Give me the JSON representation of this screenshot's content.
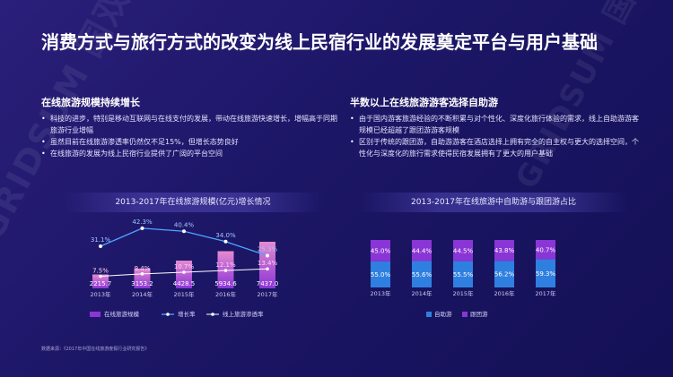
{
  "page": {
    "title": "消费方式与旅行方式的改变为线上民宿行业的发展奠定平台与用户基础",
    "watermark": "GRIDSUM 国双"
  },
  "left": {
    "heading": "在线旅游规模持续增长",
    "bullets": [
      "科技的进步，特别是移动互联网与在线支付的发展，带动在线旅游快速增长，增幅高于同期旅游行业增幅",
      "虽然目前在线旅游渗透率仍然仅不足15%，但增长态势良好",
      "在线旅游的发展为线上民宿行业提供了广阔的平台空间"
    ]
  },
  "right": {
    "heading": "半数以上在线旅游游客选择自助游",
    "bullets": [
      "由于国内游客旅游经验的不断积累与对个性化、深度化旅行体验的需求，线上自助游游客规模已经超越了跟团游游客规模",
      "区别于传统的跟团游，自助游游客在酒店选择上拥有完全的自主权与更大的选择空间，个性化与深度化的旅行需求使得民宿发展拥有了更大的用户基础"
    ]
  },
  "source": "数据来源：《2017年中国在线旅游度假行业研究报告》",
  "colors": {
    "bar_pink": "#e58ad0",
    "bar_purple": "#8a35d6",
    "line_growth": "#4da6ff",
    "line_penetration": "#ffffff",
    "bar_blue": "#2f7fe0"
  },
  "chart_data": [
    {
      "type": "bar",
      "title": "2013-2017年在线旅游规模(亿元)增长情况",
      "categories": [
        "2013年",
        "2014年",
        "2015年",
        "2016年",
        "2017年"
      ],
      "series": [
        {
          "name": "在线旅游规模",
          "kind": "bar",
          "values": [
            2215.7,
            3153.2,
            4428.5,
            5934.6,
            7437.0
          ],
          "labels": [
            "2215.7",
            "3153.2",
            "4428.5",
            "5934.6",
            "7437.0"
          ]
        },
        {
          "name": "增长率",
          "kind": "line",
          "values": [
            31.1,
            42.3,
            40.4,
            34.0,
            25.3
          ],
          "labels": [
            "31.1%",
            "42.3%",
            "40.4%",
            "34.0%",
            "25.3%"
          ]
        },
        {
          "name": "线上旅游渗透率",
          "kind": "line",
          "values": [
            7.5,
            9.4,
            10.7,
            12.1,
            13.4
          ],
          "labels": [
            "7.5%",
            "9.4%",
            "10.7%",
            "12.1%",
            "13.4%"
          ]
        }
      ],
      "legend_position": "bottom"
    },
    {
      "type": "bar",
      "stacked": true,
      "percent": true,
      "title": "2013-2017年在线旅游中自助游与跟团游占比",
      "categories": [
        "2013年",
        "2014年",
        "2015年",
        "2016年",
        "2017年"
      ],
      "series": [
        {
          "name": "自助游",
          "values": [
            55.0,
            55.6,
            55.5,
            56.2,
            59.3
          ],
          "labels": [
            "55.0%",
            "55.6%",
            "55.5%",
            "56.2%",
            "59.3%"
          ]
        },
        {
          "name": "跟团游",
          "values": [
            45.0,
            44.4,
            44.5,
            43.8,
            40.7
          ],
          "labels": [
            "45.0%",
            "44.4%",
            "44.5%",
            "43.8%",
            "40.7%"
          ]
        }
      ],
      "ylim": [
        0,
        100
      ],
      "legend_position": "bottom"
    }
  ]
}
